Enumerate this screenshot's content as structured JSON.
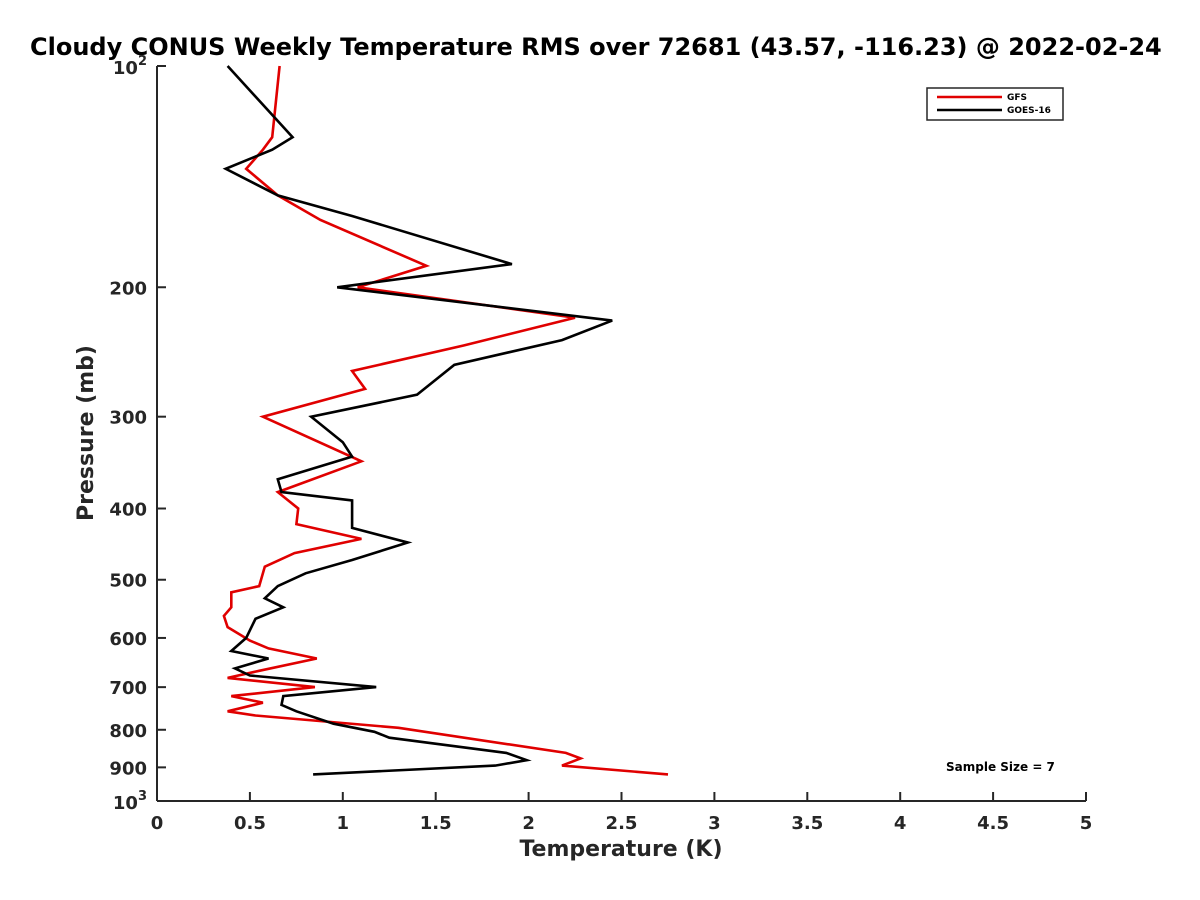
{
  "chart_data": {
    "type": "line",
    "title": "Cloudy CONUS Weekly Temperature RMS over 72681 (43.57, -116.23) @ 2022-02-24",
    "xlabel": "Temperature (K)",
    "ylabel": "Pressure (mb)",
    "xlim": [
      0,
      5
    ],
    "ylim": [
      100,
      1000
    ],
    "y_scale": "log",
    "y_reversed": true,
    "grid": false,
    "legend_position": "top-right",
    "x_ticks": [
      "0",
      "0.5",
      "1",
      "1.5",
      "2",
      "2.5",
      "3",
      "3.5",
      "4",
      "4.5",
      "5"
    ],
    "x_tick_values": [
      0,
      0.5,
      1,
      1.5,
      2,
      2.5,
      3,
      3.5,
      4,
      4.5,
      5
    ],
    "y_ticks": [
      {
        "value": 100,
        "base": "10",
        "exp": "2"
      },
      {
        "value": 200,
        "label": "200"
      },
      {
        "value": 300,
        "label": "300"
      },
      {
        "value": 400,
        "label": "400"
      },
      {
        "value": 500,
        "label": "500"
      },
      {
        "value": 600,
        "label": "600"
      },
      {
        "value": 700,
        "label": "700"
      },
      {
        "value": 800,
        "label": "800"
      },
      {
        "value": 900,
        "label": "900"
      },
      {
        "value": 1000,
        "base": "10",
        "exp": "3"
      }
    ],
    "series": [
      {
        "name": "GFS",
        "color": "#e00000",
        "points": [
          [
            0.66,
            100
          ],
          [
            0.62,
            125
          ],
          [
            0.57,
            130
          ],
          [
            0.48,
            138
          ],
          [
            0.65,
            150
          ],
          [
            0.88,
            162
          ],
          [
            1.45,
            187
          ],
          [
            1.08,
            200
          ],
          [
            2.25,
            220
          ],
          [
            1.65,
            240
          ],
          [
            1.05,
            260
          ],
          [
            1.12,
            275
          ],
          [
            0.57,
            300
          ],
          [
            1.1,
            345
          ],
          [
            0.65,
            380
          ],
          [
            0.76,
            400
          ],
          [
            0.75,
            420
          ],
          [
            1.1,
            440
          ],
          [
            0.74,
            460
          ],
          [
            0.58,
            480
          ],
          [
            0.55,
            510
          ],
          [
            0.4,
            520
          ],
          [
            0.4,
            545
          ],
          [
            0.36,
            560
          ],
          [
            0.38,
            580
          ],
          [
            0.5,
            605
          ],
          [
            0.6,
            620
          ],
          [
            0.86,
            640
          ],
          [
            0.55,
            665
          ],
          [
            0.38,
            680
          ],
          [
            0.85,
            700
          ],
          [
            0.4,
            720
          ],
          [
            0.57,
            735
          ],
          [
            0.38,
            755
          ],
          [
            0.53,
            765
          ],
          [
            1.3,
            795
          ],
          [
            2.2,
            860
          ],
          [
            2.28,
            875
          ],
          [
            2.18,
            895
          ],
          [
            2.75,
            920
          ]
        ]
      },
      {
        "name": "GOES-16",
        "color": "#000000",
        "points": [
          [
            0.38,
            100
          ],
          [
            0.73,
            125
          ],
          [
            0.62,
            130
          ],
          [
            0.37,
            138
          ],
          [
            0.65,
            150
          ],
          [
            1.05,
            160
          ],
          [
            1.91,
            186
          ],
          [
            0.97,
            200
          ],
          [
            2.45,
            222
          ],
          [
            2.18,
            236
          ],
          [
            1.6,
            255
          ],
          [
            1.4,
            280
          ],
          [
            0.83,
            300
          ],
          [
            1.0,
            325
          ],
          [
            1.05,
            340
          ],
          [
            0.65,
            365
          ],
          [
            0.67,
            380
          ],
          [
            1.05,
            390
          ],
          [
            1.05,
            425
          ],
          [
            1.35,
            445
          ],
          [
            1.05,
            470
          ],
          [
            0.8,
            490
          ],
          [
            0.65,
            510
          ],
          [
            0.58,
            530
          ],
          [
            0.68,
            545
          ],
          [
            0.53,
            565
          ],
          [
            0.48,
            600
          ],
          [
            0.4,
            625
          ],
          [
            0.6,
            640
          ],
          [
            0.42,
            660
          ],
          [
            0.5,
            675
          ],
          [
            1.18,
            700
          ],
          [
            0.68,
            720
          ],
          [
            0.67,
            740
          ],
          [
            0.75,
            755
          ],
          [
            0.95,
            785
          ],
          [
            1.17,
            805
          ],
          [
            1.25,
            820
          ],
          [
            1.88,
            860
          ],
          [
            1.99,
            880
          ],
          [
            1.82,
            895
          ],
          [
            0.84,
            920
          ]
        ]
      }
    ],
    "annotations": [
      "Sample Size = 7"
    ]
  }
}
